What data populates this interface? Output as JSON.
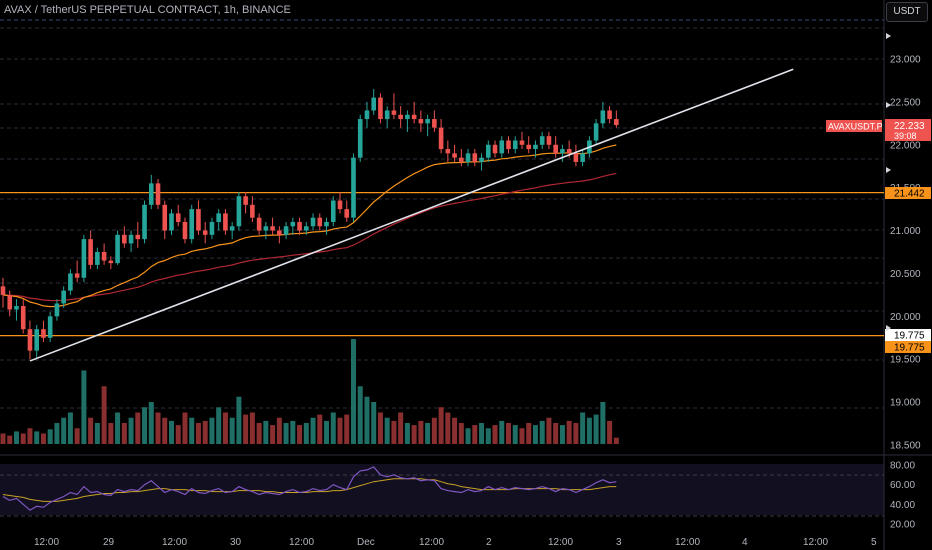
{
  "header": {
    "title": "AVAX / TetherUS PERPETUAL CONTRACT, 1h, BINANCE",
    "currency": "USDT"
  },
  "colors": {
    "up": "#26a69a",
    "down": "#ef5350",
    "level": "#f7931a",
    "trend": "#e0e3eb",
    "ema_fast": "#f7931a",
    "ema_slow": "#b22833",
    "rsi": "#7e57c2",
    "rsi_ma": "#c9a227"
  },
  "badges": {
    "symbol": "AVAXUSDT.P",
    "price": "22.233",
    "countdown": "39:08",
    "upper_level": "21.442",
    "lower_level_1": "19.775",
    "lower_level_2": "19.775"
  },
  "chart_data": {
    "type": "candlestick",
    "symbol": "AVAXUSDT.P",
    "timeframe": "1h",
    "price_axis": {
      "ticks": [
        23.0,
        22.5,
        22.0,
        21.5,
        21.0,
        20.5,
        20.0,
        19.5,
        19.0,
        18.5
      ],
      "tick_labels": [
        "23.000",
        "22.500",
        "22.000",
        "21.500",
        "21.000",
        "20.500",
        "20.000",
        "19.500",
        "19.000",
        "18.500"
      ],
      "range": [
        18.4,
        23.4
      ]
    },
    "time_axis": {
      "labels": [
        "12:00",
        "29",
        "12:00",
        "30",
        "12:00",
        "Dec",
        "12:00",
        "2",
        "12:00",
        "3",
        "12:00",
        "4",
        "12:00",
        "5"
      ]
    },
    "rsi_axis": {
      "ticks": [
        80,
        60,
        40,
        20
      ],
      "tick_labels": [
        "80.00",
        "60.00",
        "40.00",
        "20.00"
      ],
      "range": [
        10,
        90
      ]
    },
    "levels": [
      21.442,
      19.775
    ],
    "trendline": [
      [
        0,
        19.48
      ],
      [
        126,
        22.88
      ]
    ],
    "candles": [
      [
        20.35,
        20.45,
        20.1,
        20.25
      ],
      [
        20.25,
        20.3,
        20.0,
        20.08
      ],
      [
        20.08,
        20.2,
        19.95,
        20.12
      ],
      [
        20.12,
        20.2,
        19.8,
        19.85
      ],
      [
        19.85,
        19.95,
        19.5,
        19.6
      ],
      [
        19.6,
        19.9,
        19.5,
        19.85
      ],
      [
        19.85,
        19.95,
        19.7,
        19.75
      ],
      [
        19.75,
        20.05,
        19.7,
        20.0
      ],
      [
        20.0,
        20.2,
        19.95,
        20.15
      ],
      [
        20.15,
        20.35,
        20.1,
        20.3
      ],
      [
        20.3,
        20.55,
        20.25,
        20.5
      ],
      [
        20.5,
        20.65,
        20.4,
        20.45
      ],
      [
        20.45,
        20.95,
        20.4,
        20.9
      ],
      [
        20.9,
        21.0,
        20.55,
        20.6
      ],
      [
        20.6,
        20.8,
        20.55,
        20.75
      ],
      [
        20.75,
        20.85,
        20.6,
        20.65
      ],
      [
        20.65,
        20.7,
        20.55,
        20.62
      ],
      [
        20.62,
        21.0,
        20.6,
        20.95
      ],
      [
        20.95,
        21.05,
        20.8,
        20.85
      ],
      [
        20.85,
        21.0,
        20.75,
        20.95
      ],
      [
        20.95,
        21.1,
        20.8,
        20.9
      ],
      [
        20.9,
        21.35,
        20.85,
        21.3
      ],
      [
        21.3,
        21.65,
        21.25,
        21.55
      ],
      [
        21.55,
        21.6,
        21.25,
        21.3
      ],
      [
        21.3,
        21.35,
        20.9,
        21.0
      ],
      [
        21.0,
        21.25,
        20.95,
        21.2
      ],
      [
        21.2,
        21.3,
        21.05,
        21.1
      ],
      [
        21.1,
        21.15,
        20.85,
        20.9
      ],
      [
        20.9,
        21.3,
        20.85,
        21.25
      ],
      [
        21.25,
        21.35,
        20.95,
        21.0
      ],
      [
        21.0,
        21.1,
        20.85,
        20.95
      ],
      [
        20.95,
        21.15,
        20.9,
        21.1
      ],
      [
        21.1,
        21.25,
        21.0,
        21.2
      ],
      [
        21.2,
        21.25,
        20.95,
        21.0
      ],
      [
        21.0,
        21.1,
        20.9,
        21.05
      ],
      [
        21.05,
        21.45,
        21.0,
        21.4
      ],
      [
        21.4,
        21.45,
        21.2,
        21.3
      ],
      [
        21.3,
        21.4,
        21.1,
        21.15
      ],
      [
        21.15,
        21.2,
        20.95,
        21.0
      ],
      [
        21.0,
        21.1,
        20.9,
        21.05
      ],
      [
        21.05,
        21.15,
        20.95,
        21.0
      ],
      [
        21.0,
        21.05,
        20.85,
        20.95
      ],
      [
        20.95,
        21.1,
        20.9,
        21.05
      ],
      [
        21.05,
        21.15,
        20.95,
        21.1
      ],
      [
        21.1,
        21.15,
        20.95,
        21.0
      ],
      [
        21.0,
        21.1,
        20.95,
        21.05
      ],
      [
        21.05,
        21.2,
        21.0,
        21.15
      ],
      [
        21.15,
        21.2,
        21.0,
        21.05
      ],
      [
        21.05,
        21.15,
        20.95,
        21.1
      ],
      [
        21.1,
        21.4,
        21.05,
        21.35
      ],
      [
        21.35,
        21.45,
        21.2,
        21.25
      ],
      [
        21.25,
        21.35,
        21.1,
        21.15
      ],
      [
        21.15,
        21.9,
        21.1,
        21.85
      ],
      [
        21.85,
        22.35,
        21.8,
        22.3
      ],
      [
        22.3,
        22.5,
        22.2,
        22.4
      ],
      [
        22.4,
        22.65,
        22.35,
        22.55
      ],
      [
        22.55,
        22.6,
        22.25,
        22.3
      ],
      [
        22.3,
        22.45,
        22.2,
        22.4
      ],
      [
        22.4,
        22.6,
        22.3,
        22.35
      ],
      [
        22.35,
        22.45,
        22.2,
        22.3
      ],
      [
        22.3,
        22.4,
        22.15,
        22.35
      ],
      [
        22.35,
        22.5,
        22.25,
        22.3
      ],
      [
        22.3,
        22.4,
        22.15,
        22.25
      ],
      [
        22.25,
        22.35,
        22.1,
        22.3
      ],
      [
        22.3,
        22.4,
        22.15,
        22.2
      ],
      [
        22.2,
        22.3,
        21.9,
        21.95
      ],
      [
        21.95,
        22.05,
        21.8,
        21.9
      ],
      [
        21.9,
        22.0,
        21.8,
        21.85
      ],
      [
        21.85,
        21.95,
        21.75,
        21.8
      ],
      [
        21.8,
        21.95,
        21.75,
        21.9
      ],
      [
        21.9,
        21.95,
        21.75,
        21.8
      ],
      [
        21.8,
        21.9,
        21.7,
        21.85
      ],
      [
        21.85,
        22.05,
        21.8,
        22.0
      ],
      [
        22.0,
        22.05,
        21.85,
        21.9
      ],
      [
        21.9,
        22.1,
        21.85,
        22.05
      ],
      [
        22.05,
        22.1,
        21.9,
        21.95
      ],
      [
        21.95,
        22.1,
        21.9,
        22.05
      ],
      [
        22.05,
        22.15,
        21.95,
        22.0
      ],
      [
        22.0,
        22.1,
        21.9,
        21.95
      ],
      [
        21.95,
        22.05,
        21.85,
        22.0
      ],
      [
        22.0,
        22.15,
        21.95,
        22.1
      ],
      [
        22.1,
        22.15,
        21.95,
        22.0
      ],
      [
        22.0,
        22.1,
        21.85,
        21.9
      ],
      [
        21.9,
        22.0,
        21.8,
        21.95
      ],
      [
        21.95,
        22.05,
        21.85,
        21.9
      ],
      [
        21.9,
        22.0,
        21.75,
        21.8
      ],
      [
        21.8,
        21.95,
        21.75,
        21.9
      ],
      [
        21.9,
        22.1,
        21.85,
        22.05
      ],
      [
        22.05,
        22.3,
        22.0,
        22.25
      ],
      [
        22.25,
        22.5,
        22.2,
        22.4
      ],
      [
        22.4,
        22.45,
        22.25,
        22.3
      ],
      [
        22.3,
        22.4,
        22.2,
        22.23
      ]
    ],
    "volumes": [
      0.1,
      0.08,
      0.12,
      0.1,
      0.15,
      0.12,
      0.1,
      0.14,
      0.2,
      0.25,
      0.3,
      0.15,
      0.7,
      0.25,
      0.2,
      0.55,
      0.2,
      0.3,
      0.2,
      0.25,
      0.3,
      0.35,
      0.4,
      0.3,
      0.25,
      0.22,
      0.18,
      0.3,
      0.25,
      0.2,
      0.22,
      0.25,
      0.35,
      0.3,
      0.25,
      0.45,
      0.28,
      0.3,
      0.2,
      0.22,
      0.18,
      0.25,
      0.2,
      0.22,
      0.18,
      0.2,
      0.25,
      0.28,
      0.22,
      0.3,
      0.25,
      0.28,
      1.0,
      0.55,
      0.45,
      0.4,
      0.3,
      0.25,
      0.22,
      0.3,
      0.2,
      0.18,
      0.22,
      0.2,
      0.25,
      0.35,
      0.3,
      0.25,
      0.2,
      0.15,
      0.18,
      0.2,
      0.15,
      0.18,
      0.22,
      0.2,
      0.18,
      0.15,
      0.2,
      0.18,
      0.22,
      0.25,
      0.2,
      0.18,
      0.22,
      0.2,
      0.3,
      0.25,
      0.28,
      0.4,
      0.22,
      0.06
    ],
    "rsi": [
      48,
      44,
      46,
      40,
      34,
      38,
      37,
      42,
      45,
      48,
      52,
      50,
      58,
      52,
      53,
      50,
      49,
      55,
      53,
      55,
      54,
      60,
      64,
      58,
      52,
      55,
      53,
      50,
      56,
      52,
      51,
      54,
      56,
      52,
      53,
      58,
      55,
      53,
      50,
      52,
      51,
      50,
      53,
      55,
      52,
      53,
      56,
      54,
      55,
      60,
      57,
      55,
      68,
      74,
      75,
      78,
      70,
      68,
      70,
      67,
      66,
      67,
      64,
      65,
      64,
      56,
      54,
      53,
      52,
      55,
      53,
      54,
      58,
      55,
      57,
      55,
      57,
      56,
      55,
      56,
      58,
      56,
      53,
      56,
      55,
      52,
      55,
      58,
      62,
      65,
      62,
      63
    ],
    "rsi_ma": [
      50,
      49,
      48,
      47,
      45,
      44,
      43,
      43,
      43,
      44,
      45,
      46,
      48,
      49,
      50,
      51,
      51,
      52,
      52,
      53,
      53,
      54,
      55,
      56,
      56,
      55,
      55,
      55,
      54,
      54,
      54,
      53,
      53,
      53,
      53,
      54,
      54,
      54,
      54,
      53,
      53,
      52,
      52,
      52,
      52,
      52,
      53,
      53,
      53,
      54,
      54,
      55,
      57,
      59,
      61,
      63,
      64,
      65,
      66,
      66,
      66,
      66,
      66,
      65,
      65,
      63,
      61,
      60,
      58,
      57,
      56,
      55,
      55,
      55,
      55,
      55,
      56,
      56,
      56,
      56,
      56,
      56,
      56,
      55,
      55,
      55,
      55,
      55,
      56,
      57,
      58,
      58
    ]
  }
}
